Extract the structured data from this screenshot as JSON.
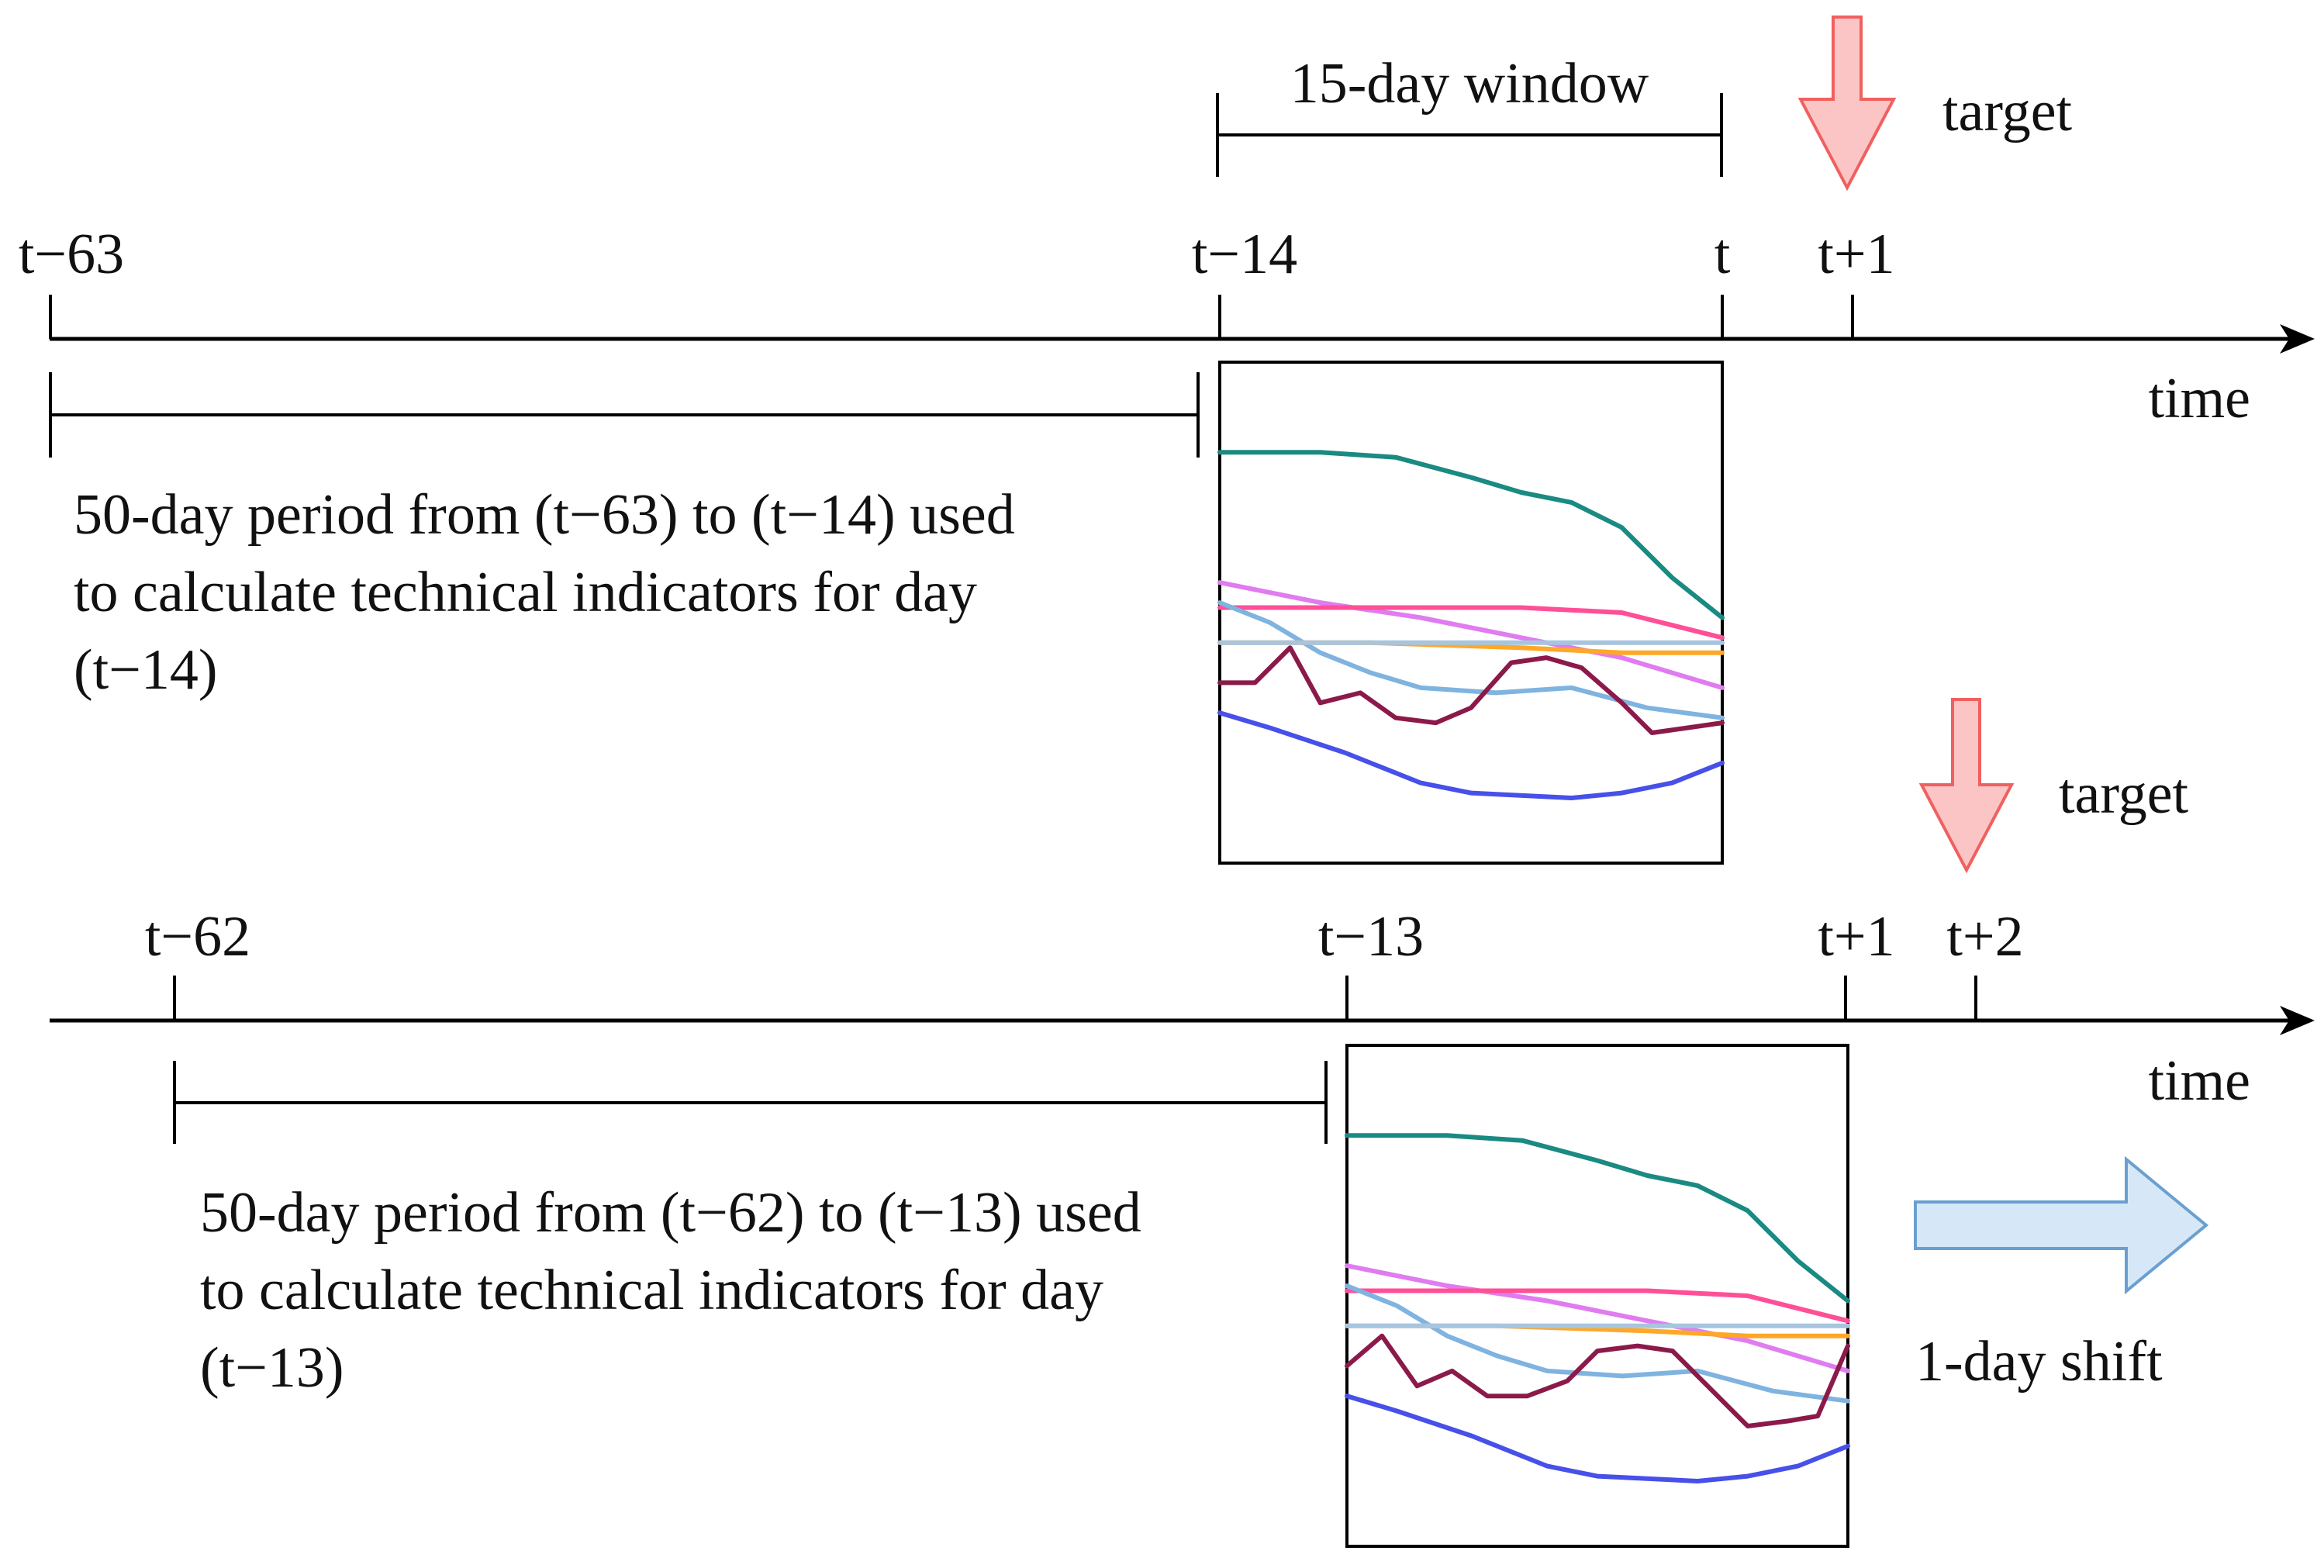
{
  "row1": {
    "tick_labels": {
      "start": "t−63",
      "window_start": "t−14",
      "t": "t",
      "target": "t+1"
    },
    "window_label": "15-day window",
    "target_label": "target",
    "axis_label": "time",
    "period_text": {
      "line1": "50-day period from (t−63) to (t−14) used",
      "line2": "to calculate technical indicators for day",
      "line3": "(t−14)"
    }
  },
  "row2": {
    "tick_labels": {
      "start": "t−62",
      "window_start": "t−13",
      "t": "t+1",
      "target": "t+2"
    },
    "target_label": "target",
    "axis_label": "time",
    "period_text": {
      "line1": "50-day period from (t−62) to (t−13) used",
      "line2": "to calculate technical indicators for day",
      "line3": "(t−13)"
    },
    "shift_label": "1-day shift"
  },
  "colors": {
    "target_arrow_fill": "#fcc5c5",
    "target_arrow_stroke": "#f06060",
    "shift_arrow_fill": "#d6e8f7",
    "shift_arrow_stroke": "#6a9fd0",
    "axis": "#000000"
  },
  "indicator_series": [
    {
      "name": "teal",
      "color": "#1a8a82"
    },
    {
      "name": "violet",
      "color": "#e07cf0"
    },
    {
      "name": "pink",
      "color": "#ff4f97"
    },
    {
      "name": "light-blue",
      "color": "#7fb3e0"
    },
    {
      "name": "orange",
      "color": "#ffa727"
    },
    {
      "name": "grey-blue",
      "color": "#a7c5de"
    },
    {
      "name": "maroon",
      "color": "#8b1a4a"
    },
    {
      "name": "blue",
      "color": "#4750e8"
    }
  ]
}
